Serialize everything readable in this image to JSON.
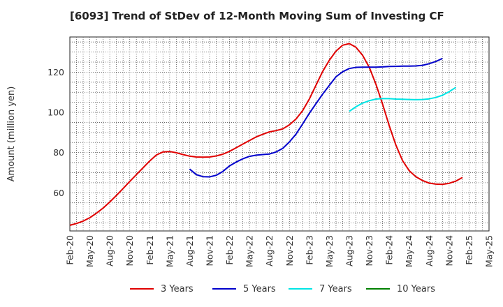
{
  "chart_data": {
    "type": "line",
    "title": "[6093]  Trend of StDev of 12-Month Moving Sum of Investing CF",
    "xlabel": "",
    "ylabel": "Amount (million yen)",
    "x_ticks": [
      "Feb-20",
      "May-20",
      "Aug-20",
      "Nov-20",
      "Feb-21",
      "May-21",
      "Aug-21",
      "Nov-21",
      "Feb-22",
      "May-22",
      "Aug-22",
      "Nov-22",
      "Feb-23",
      "May-23",
      "Aug-23",
      "Nov-23",
      "Feb-24",
      "May-24",
      "Aug-24",
      "Nov-24",
      "Feb-25",
      "May-25"
    ],
    "y_ticks": [
      60,
      80,
      100,
      120
    ],
    "ylim": [
      41,
      137.5
    ],
    "grid": true,
    "legend_position": "bottom",
    "series": [
      {
        "name": "3 Years",
        "color": "#e00000",
        "start": "Feb-20",
        "values": [
          43.8,
          44.7,
          45.9,
          47.6,
          49.8,
          52.4,
          55.4,
          58.7,
          62.1,
          65.6,
          69.0,
          72.4,
          75.8,
          78.8,
          80.3,
          80.5,
          79.9,
          79.0,
          78.2,
          77.8,
          77.7,
          77.8,
          78.3,
          79.2,
          80.6,
          82.4,
          84.2,
          86.0,
          87.8,
          89.1,
          90.3,
          90.9,
          91.8,
          93.8,
          96.7,
          100.9,
          106.7,
          113.6,
          120.4,
          125.9,
          130.5,
          133.4,
          134.2,
          132.4,
          128.4,
          122.4,
          114.0,
          104.1,
          93.4,
          83.7,
          76.0,
          71.0,
          68.0,
          66.1,
          64.8,
          64.3,
          64.2,
          64.7,
          65.8,
          67.6
        ]
      },
      {
        "name": "5 Years",
        "color": "#0000cc",
        "start": "Aug-21",
        "values": [
          71.8,
          69.0,
          68.0,
          67.9,
          68.7,
          70.6,
          73.4,
          75.3,
          76.9,
          78.1,
          78.7,
          79.0,
          79.3,
          80.3,
          82.1,
          85.3,
          89.2,
          94.3,
          99.6,
          104.4,
          109.1,
          113.4,
          117.7,
          120.2,
          121.8,
          122.4,
          122.5,
          122.5,
          122.5,
          122.6,
          122.8,
          122.9,
          123.0,
          123.0,
          123.1,
          123.4,
          124.2,
          125.3,
          126.8
        ]
      },
      {
        "name": "7 Years",
        "color": "#00e5e5",
        "start": "Aug-23",
        "values": [
          100.5,
          102.8,
          104.6,
          105.8,
          106.6,
          106.9,
          106.8,
          106.6,
          106.5,
          106.4,
          106.3,
          106.4,
          106.7,
          107.4,
          108.5,
          110.3,
          112.4
        ]
      },
      {
        "name": "10 Years",
        "color": "#008000",
        "start": "Feb-25",
        "values": []
      }
    ]
  }
}
